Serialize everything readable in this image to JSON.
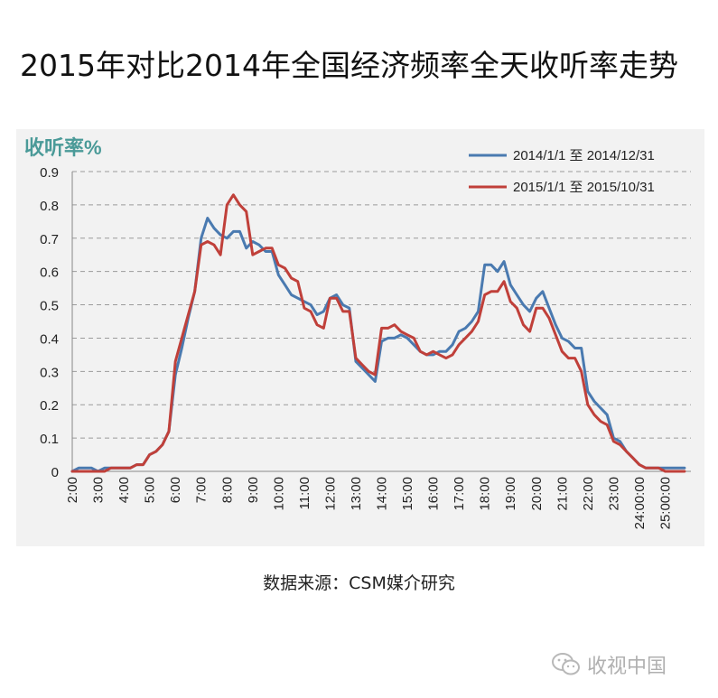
{
  "header": {
    "title": "2015年对比2014年全国经济频率全天收听率走势"
  },
  "footer": {
    "source": "数据来源：CSM媒介研究"
  },
  "watermark": {
    "text": "收视中国",
    "icon": "wechat-icon"
  },
  "colors": {
    "series2014": "#4a7ab0",
    "series2015": "#c0403a",
    "panel": "#f2f2f2",
    "unit": "#4a9a98"
  },
  "chart_data": {
    "type": "line",
    "ylabel": "收听率%",
    "ylim": [
      0,
      0.9
    ],
    "yticks": [
      "0",
      "0.1",
      "0.2",
      "0.3",
      "0.4",
      "0.5",
      "0.6",
      "0.7",
      "0.8",
      "0.9"
    ],
    "xlim": [
      2.0,
      26.0
    ],
    "xticks": [
      "2:00",
      "3:00",
      "4:00",
      "5:00",
      "6:00",
      "7:00",
      "8:00",
      "9:00",
      "10:00",
      "11:00",
      "12:00",
      "13:00",
      "14:00",
      "15:00",
      "16:00",
      "17:00",
      "18:00",
      "19:00",
      "20:00",
      "21:00",
      "22:00",
      "23:00",
      "24:00:00",
      "25:00:00"
    ],
    "grid": true,
    "legend": "top-right",
    "series": [
      {
        "name": "2014/1/1 至 2014/12/31",
        "x": [
          2.0,
          2.25,
          2.5,
          2.75,
          3.0,
          3.25,
          3.5,
          3.75,
          4.0,
          4.25,
          4.5,
          4.75,
          5.0,
          5.25,
          5.5,
          5.75,
          6.0,
          6.25,
          6.5,
          6.75,
          7.0,
          7.25,
          7.5,
          7.75,
          8.0,
          8.25,
          8.5,
          8.75,
          9.0,
          9.25,
          9.5,
          9.75,
          10.0,
          10.25,
          10.5,
          10.75,
          11.0,
          11.25,
          11.5,
          11.75,
          12.0,
          12.25,
          12.5,
          12.75,
          13.0,
          13.25,
          13.5,
          13.75,
          14.0,
          14.25,
          14.5,
          14.75,
          15.0,
          15.25,
          15.5,
          15.75,
          16.0,
          16.25,
          16.5,
          16.75,
          17.0,
          17.25,
          17.5,
          17.75,
          18.0,
          18.25,
          18.5,
          18.75,
          19.0,
          19.25,
          19.5,
          19.75,
          20.0,
          20.25,
          20.5,
          20.75,
          21.0,
          21.25,
          21.5,
          21.75,
          22.0,
          22.25,
          22.5,
          22.75,
          23.0,
          23.25,
          23.5,
          23.75,
          24.0,
          24.25,
          24.5,
          24.75,
          25.0,
          25.25,
          25.5,
          25.75
        ],
        "values": [
          0.0,
          0.01,
          0.01,
          0.01,
          0.0,
          0.01,
          0.01,
          0.01,
          0.01,
          0.01,
          0.02,
          0.02,
          0.05,
          0.06,
          0.08,
          0.12,
          0.29,
          0.37,
          0.46,
          0.54,
          0.7,
          0.76,
          0.73,
          0.71,
          0.7,
          0.72,
          0.72,
          0.67,
          0.69,
          0.68,
          0.66,
          0.66,
          0.59,
          0.56,
          0.53,
          0.52,
          0.51,
          0.5,
          0.47,
          0.48,
          0.52,
          0.53,
          0.5,
          0.49,
          0.33,
          0.31,
          0.29,
          0.27,
          0.39,
          0.4,
          0.4,
          0.41,
          0.4,
          0.38,
          0.36,
          0.35,
          0.35,
          0.36,
          0.36,
          0.38,
          0.42,
          0.43,
          0.45,
          0.48,
          0.62,
          0.62,
          0.6,
          0.63,
          0.56,
          0.53,
          0.5,
          0.48,
          0.52,
          0.54,
          0.49,
          0.44,
          0.4,
          0.39,
          0.37,
          0.37,
          0.24,
          0.21,
          0.19,
          0.17,
          0.1,
          0.09,
          0.06,
          0.04,
          0.02,
          0.01,
          0.01,
          0.01,
          0.01,
          0.01,
          0.01,
          0.01
        ]
      },
      {
        "name": "2015/1/1 至 2015/10/31",
        "x": [
          2.0,
          2.25,
          2.5,
          2.75,
          3.0,
          3.25,
          3.5,
          3.75,
          4.0,
          4.25,
          4.5,
          4.75,
          5.0,
          5.25,
          5.5,
          5.75,
          6.0,
          6.25,
          6.5,
          6.75,
          7.0,
          7.25,
          7.5,
          7.75,
          8.0,
          8.25,
          8.5,
          8.75,
          9.0,
          9.25,
          9.5,
          9.75,
          10.0,
          10.25,
          10.5,
          10.75,
          11.0,
          11.25,
          11.5,
          11.75,
          12.0,
          12.25,
          12.5,
          12.75,
          13.0,
          13.25,
          13.5,
          13.75,
          14.0,
          14.25,
          14.5,
          14.75,
          15.0,
          15.25,
          15.5,
          15.75,
          16.0,
          16.25,
          16.5,
          16.75,
          17.0,
          17.25,
          17.5,
          17.75,
          18.0,
          18.25,
          18.5,
          18.75,
          19.0,
          19.25,
          19.5,
          19.75,
          20.0,
          20.25,
          20.5,
          20.75,
          21.0,
          21.25,
          21.5,
          21.75,
          22.0,
          22.25,
          22.5,
          22.75,
          23.0,
          23.25,
          23.5,
          23.75,
          24.0,
          24.25,
          24.5,
          24.75,
          25.0,
          25.25,
          25.5,
          25.75
        ],
        "values": [
          0.0,
          0.0,
          0.0,
          0.0,
          0.0,
          0.0,
          0.01,
          0.01,
          0.01,
          0.01,
          0.02,
          0.02,
          0.05,
          0.06,
          0.08,
          0.12,
          0.33,
          0.4,
          0.47,
          0.54,
          0.68,
          0.69,
          0.68,
          0.65,
          0.8,
          0.83,
          0.8,
          0.78,
          0.65,
          0.66,
          0.67,
          0.67,
          0.62,
          0.61,
          0.58,
          0.57,
          0.49,
          0.48,
          0.44,
          0.43,
          0.52,
          0.52,
          0.48,
          0.48,
          0.34,
          0.32,
          0.3,
          0.29,
          0.43,
          0.43,
          0.44,
          0.42,
          0.41,
          0.4,
          0.36,
          0.35,
          0.36,
          0.35,
          0.34,
          0.35,
          0.38,
          0.4,
          0.42,
          0.45,
          0.53,
          0.54,
          0.54,
          0.57,
          0.51,
          0.49,
          0.44,
          0.42,
          0.49,
          0.49,
          0.46,
          0.41,
          0.36,
          0.34,
          0.34,
          0.3,
          0.2,
          0.17,
          0.15,
          0.14,
          0.09,
          0.08,
          0.06,
          0.04,
          0.02,
          0.01,
          0.01,
          0.01,
          0.0,
          0.0,
          0.0,
          0.0
        ]
      }
    ]
  }
}
